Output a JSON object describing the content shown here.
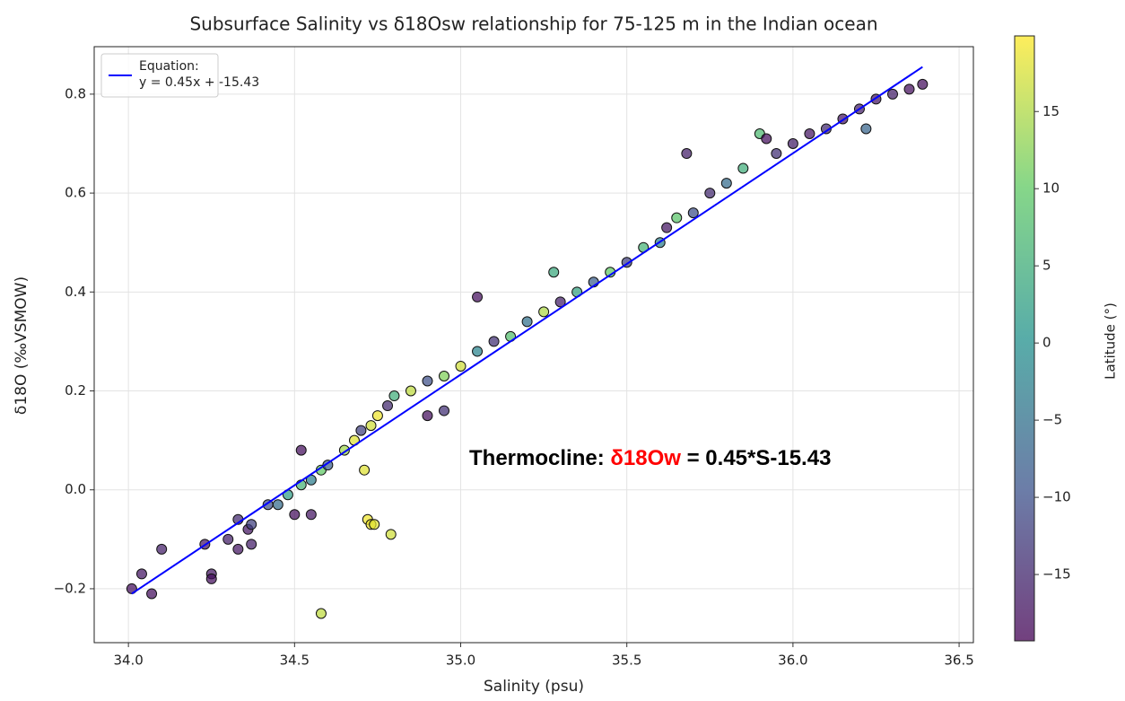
{
  "chart_data": {
    "type": "scatter",
    "title": "Subsurface Salinity vs δ18Osw relationship for 75-125 m in the Indian ocean",
    "x_label": "Salinity (psu)",
    "y_label": "δ18O (‰VSMOW)",
    "colorbar_label": "Latitude (°)",
    "cmap": "viridis",
    "clim": [
      -19.3,
      19.9
    ],
    "cticks": [
      {
        "value": -15,
        "label": "−15"
      },
      {
        "value": -10,
        "label": "−10"
      },
      {
        "value": -5,
        "label": "−5"
      },
      0,
      5,
      10,
      15
    ],
    "xlim": [
      33.897,
      36.543
    ],
    "ylim": [
      -0.309,
      0.896
    ],
    "xticks": [
      {
        "value": 34.0,
        "label": "34.0"
      },
      34.5,
      {
        "value": 35.0,
        "label": "35.0"
      },
      35.5,
      {
        "value": 36.0,
        "label": "36.0"
      },
      36.5
    ],
    "yticks": [
      {
        "value": -0.2,
        "label": "−0.2"
      },
      {
        "value": 0,
        "label": "0.0"
      },
      0.2,
      0.4,
      0.6,
      0.8
    ],
    "grid": true,
    "legend_position": "upper left",
    "annotation": {
      "parts": [
        {
          "text": "Thermocline: ",
          "color": "#000000"
        },
        {
          "text": "δ18Ow",
          "color": "#ff0000"
        },
        {
          "text": " = 0.45*S-15.43",
          "color": "#000000"
        }
      ]
    },
    "series": [
      {
        "name": "Equation:\ny = 0.45x + -15.43",
        "kind": "line",
        "color": "#0000ff",
        "x": [
          34.01,
          36.39
        ],
        "values": [
          -0.21,
          0.855
        ]
      },
      {
        "kind": "points",
        "x": [
          34.01,
          34.04,
          34.07,
          34.1,
          34.25,
          34.25,
          34.23,
          34.3,
          34.33,
          34.36,
          34.37,
          34.37,
          34.42,
          34.45,
          34.48,
          34.52,
          34.55,
          34.58,
          34.6,
          34.52,
          34.65,
          34.68,
          34.7,
          34.73,
          34.75,
          34.78,
          34.8,
          34.85,
          34.9,
          34.95,
          35.0,
          35.05,
          35.1,
          35.15,
          35.2,
          35.25,
          35.3,
          35.35,
          35.4,
          35.28,
          35.45,
          35.5,
          35.55,
          35.6,
          35.62,
          35.65,
          35.7,
          35.75,
          35.8,
          35.85,
          35.9,
          35.92,
          35.95,
          36.0,
          36.05,
          36.1,
          36.15,
          36.2,
          36.22,
          36.25,
          36.3,
          36.35,
          36.39,
          35.68,
          35.05,
          34.9,
          34.95,
          34.55,
          34.5,
          34.71,
          34.72,
          34.73,
          34.74,
          34.79,
          34.58,
          34.33
        ],
        "values": [
          -0.2,
          -0.17,
          -0.21,
          -0.12,
          -0.17,
          -0.18,
          -0.11,
          -0.1,
          -0.06,
          -0.08,
          -0.11,
          -0.07,
          -0.03,
          -0.03,
          -0.01,
          0.01,
          0.02,
          0.04,
          0.05,
          0.08,
          0.08,
          0.1,
          0.12,
          0.13,
          0.15,
          0.17,
          0.19,
          0.2,
          0.22,
          0.23,
          0.25,
          0.28,
          0.3,
          0.31,
          0.34,
          0.36,
          0.38,
          0.4,
          0.42,
          0.44,
          0.44,
          0.46,
          0.49,
          0.5,
          0.53,
          0.55,
          0.56,
          0.6,
          0.62,
          0.65,
          0.72,
          0.71,
          0.68,
          0.7,
          0.72,
          0.73,
          0.75,
          0.77,
          0.73,
          0.79,
          0.8,
          0.81,
          0.82,
          0.68,
          0.39,
          0.15,
          0.16,
          -0.05,
          -0.05,
          0.04,
          -0.06,
          -0.07,
          -0.07,
          -0.09,
          -0.25,
          -0.12
        ],
        "c": [
          -18,
          -17,
          -18,
          -16,
          -17,
          -18,
          -17,
          -16,
          -15,
          -17,
          -16,
          -12,
          -10,
          -6,
          2,
          6,
          -3,
          10,
          -8,
          -18,
          14,
          18,
          -12,
          17,
          19,
          -15,
          5,
          16,
          -10,
          12,
          17,
          -2,
          -14,
          8,
          -5,
          15,
          -16,
          3,
          -8,
          4,
          10,
          -12,
          6,
          -3,
          -17,
          9,
          -10,
          -15,
          -6,
          5,
          7,
          -18,
          -14,
          -16,
          -17,
          -15,
          -17,
          -16,
          -7,
          -17,
          -16,
          -18,
          -18,
          -16,
          -18,
          -18,
          -14,
          -17,
          -18,
          18,
          19,
          19,
          18,
          17,
          16,
          -17
        ]
      }
    ]
  }
}
